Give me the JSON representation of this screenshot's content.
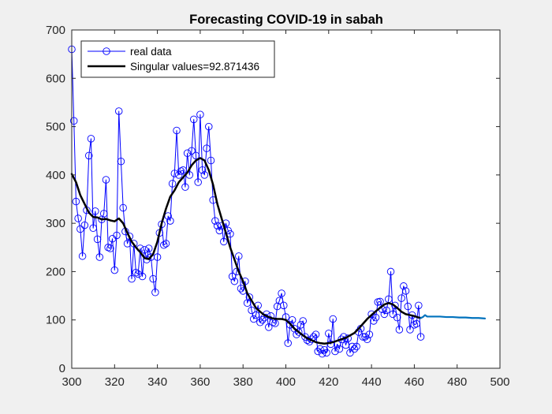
{
  "colors": {
    "figure_bg": "#f0f0f0",
    "axes_bg": "#ffffff",
    "axis": "#262626",
    "real_data": "#0000ff",
    "singular_fit": "#000000",
    "forecast": "#0072bd"
  },
  "chart_data": {
    "type": "line",
    "title": "Forecasting COVID-19 in sabah",
    "xlabel": "",
    "ylabel": "",
    "xlim": [
      300,
      500
    ],
    "ylim": [
      0,
      700
    ],
    "xticks": [
      300,
      320,
      340,
      360,
      380,
      400,
      420,
      440,
      460,
      480,
      500
    ],
    "yticks": [
      0,
      100,
      200,
      300,
      400,
      500,
      600,
      700
    ],
    "grid": false,
    "legend_position": "top-left",
    "series": [
      {
        "name": "real data",
        "style": "line-with-circle-markers",
        "color": "#0000ff",
        "x": [
          300,
          301,
          302,
          303,
          304,
          305,
          306,
          307,
          308,
          309,
          310,
          311,
          312,
          313,
          314,
          315,
          316,
          317,
          318,
          319,
          320,
          321,
          322,
          323,
          324,
          325,
          326,
          327,
          328,
          329,
          330,
          331,
          332,
          333,
          334,
          335,
          336,
          337,
          338,
          339,
          340,
          341,
          342,
          343,
          344,
          345,
          346,
          347,
          348,
          349,
          350,
          351,
          352,
          353,
          354,
          355,
          356,
          357,
          358,
          359,
          360,
          361,
          362,
          363,
          364,
          365,
          366,
          367,
          368,
          369,
          370,
          371,
          372,
          373,
          374,
          375,
          376,
          377,
          378,
          379,
          380,
          381,
          382,
          383,
          384,
          385,
          386,
          387,
          388,
          389,
          390,
          391,
          392,
          393,
          394,
          395,
          396,
          397,
          398,
          399,
          400,
          401,
          402,
          403,
          404,
          405,
          406,
          407,
          408,
          409,
          410,
          411,
          412,
          413,
          414,
          415,
          416,
          417,
          418,
          419,
          420,
          421,
          422,
          423,
          424,
          425,
          426,
          427,
          428,
          429,
          430,
          431,
          432,
          433,
          434,
          435,
          436,
          437,
          438,
          439,
          440,
          441,
          442,
          443,
          444,
          445,
          446,
          447,
          448,
          449,
          450,
          451,
          452,
          453,
          454,
          455,
          456,
          457,
          458,
          459,
          460,
          461,
          462,
          463
        ],
        "y": [
          660,
          512,
          345,
          310,
          288,
          232,
          296,
          327,
          440,
          475,
          290,
          325,
          267,
          230,
          308,
          320,
          390,
          250,
          248,
          268,
          203,
          275,
          532,
          428,
          332,
          283,
          258,
          273,
          185,
          258,
          198,
          195,
          248,
          190,
          245,
          225,
          248,
          230,
          185,
          157,
          230,
          280,
          298,
          255,
          258,
          315,
          305,
          382,
          403,
          492,
          400,
          408,
          410,
          375,
          445,
          400,
          450,
          515,
          440,
          385,
          525,
          410,
          400,
          455,
          500,
          430,
          348,
          305,
          295,
          285,
          295,
          262,
          300,
          285,
          278,
          190,
          180,
          200,
          232,
          165,
          160,
          180,
          135,
          147,
          120,
          102,
          110,
          130,
          95,
          100,
          105,
          112,
          85,
          108,
          95,
          93,
          128,
          140,
          155,
          130,
          106,
          52,
          90,
          100,
          82,
          70,
          75,
          90,
          98,
          65,
          58,
          55,
          60,
          65,
          70,
          35,
          40,
          30,
          38,
          32,
          72,
          50,
          102,
          35,
          50,
          40,
          60,
          65,
          48,
          62,
          32,
          45,
          40,
          45,
          75,
          82,
          65,
          65,
          60,
          70,
          112,
          98,
          105,
          137,
          138,
          122,
          112,
          120,
          143,
          200,
          112,
          130,
          105,
          80,
          145,
          170,
          160,
          128,
          80,
          110,
          90,
          92,
          130,
          65
        ]
      },
      {
        "name": "Singular values=92.871436",
        "style": "thick-line",
        "color": "#000000",
        "x": [
          300,
          302,
          304,
          306,
          308,
          310,
          312,
          314,
          316,
          318,
          320,
          322,
          324,
          326,
          328,
          330,
          332,
          334,
          336,
          338,
          340,
          342,
          344,
          346,
          348,
          350,
          352,
          354,
          356,
          358,
          360,
          362,
          364,
          366,
          368,
          370,
          372,
          374,
          376,
          378,
          380,
          382,
          384,
          386,
          388,
          390,
          392,
          394,
          396,
          398,
          400,
          402,
          404,
          406,
          408,
          410,
          412,
          414,
          416,
          418,
          420,
          422,
          424,
          426,
          428,
          430,
          432,
          434,
          436,
          438,
          440,
          442,
          444,
          446,
          448,
          450,
          452,
          454,
          456,
          458,
          460,
          462,
          463
        ],
        "y": [
          402,
          385,
          358,
          340,
          322,
          313,
          312,
          308,
          309,
          306,
          304,
          310,
          300,
          280,
          262,
          250,
          240,
          228,
          226,
          236,
          262,
          300,
          330,
          355,
          368,
          385,
          395,
          405,
          420,
          430,
          435,
          430,
          410,
          380,
          340,
          310,
          280,
          250,
          225,
          200,
          180,
          155,
          140,
          125,
          117,
          110,
          106,
          103,
          102,
          102,
          100,
          92,
          82,
          75,
          68,
          62,
          58,
          54,
          52,
          51,
          52,
          54,
          57,
          60,
          63,
          68,
          73,
          82,
          92,
          102,
          110,
          118,
          125,
          132,
          135,
          132,
          125,
          117,
          112,
          110,
          108,
          105,
          104
        ]
      },
      {
        "name": "",
        "style": "line",
        "color": "#0072bd",
        "x": [
          463,
          464,
          465,
          466,
          468,
          470,
          472,
          475,
          478,
          481,
          484,
          487,
          490,
          493
        ],
        "y": [
          104,
          106,
          110,
          107,
          107,
          107,
          107,
          106,
          106,
          105,
          105,
          104,
          104,
          103
        ]
      }
    ]
  }
}
